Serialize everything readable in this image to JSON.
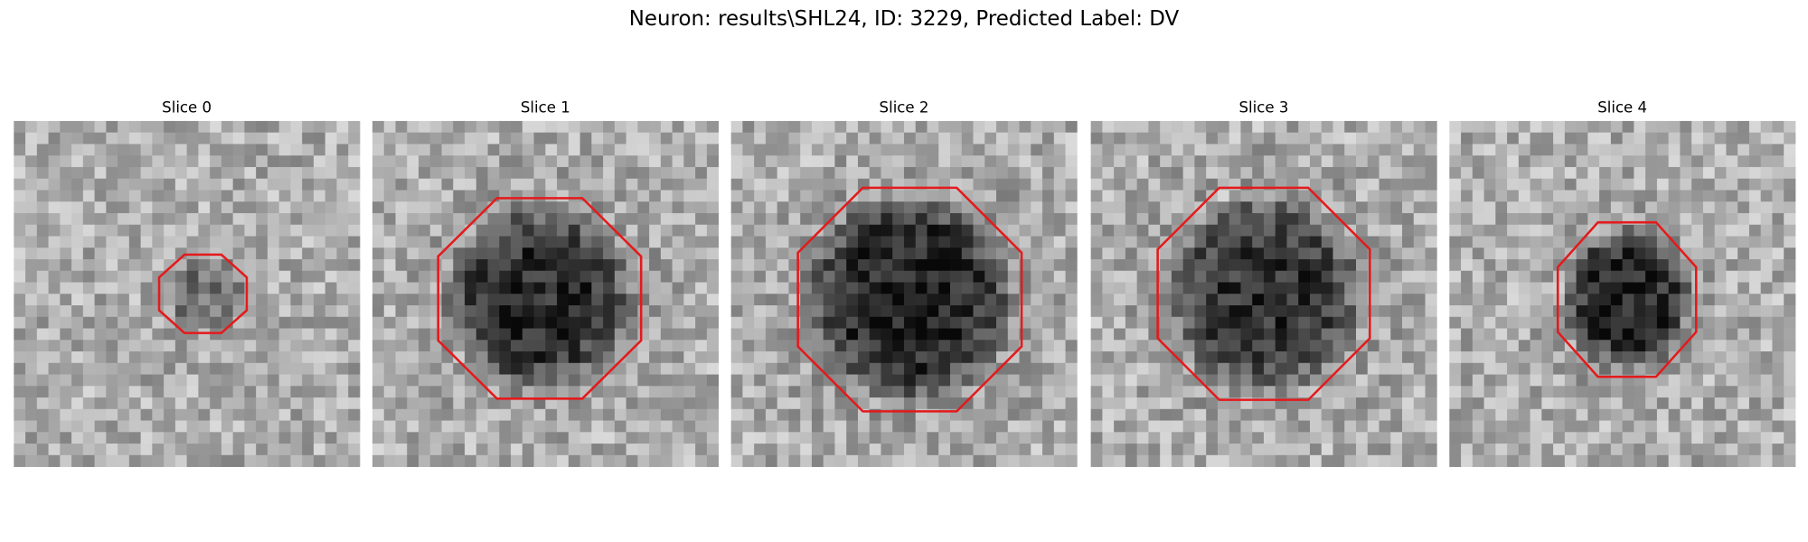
{
  "title": "Neuron: results\\SHL24, ID: 3229, Predicted Label: DV",
  "panels": [
    {
      "title": "Slice 0"
    },
    {
      "title": "Slice 1"
    },
    {
      "title": "Slice 2"
    },
    {
      "title": "Slice 3"
    },
    {
      "title": "Slice 4"
    }
  ]
}
